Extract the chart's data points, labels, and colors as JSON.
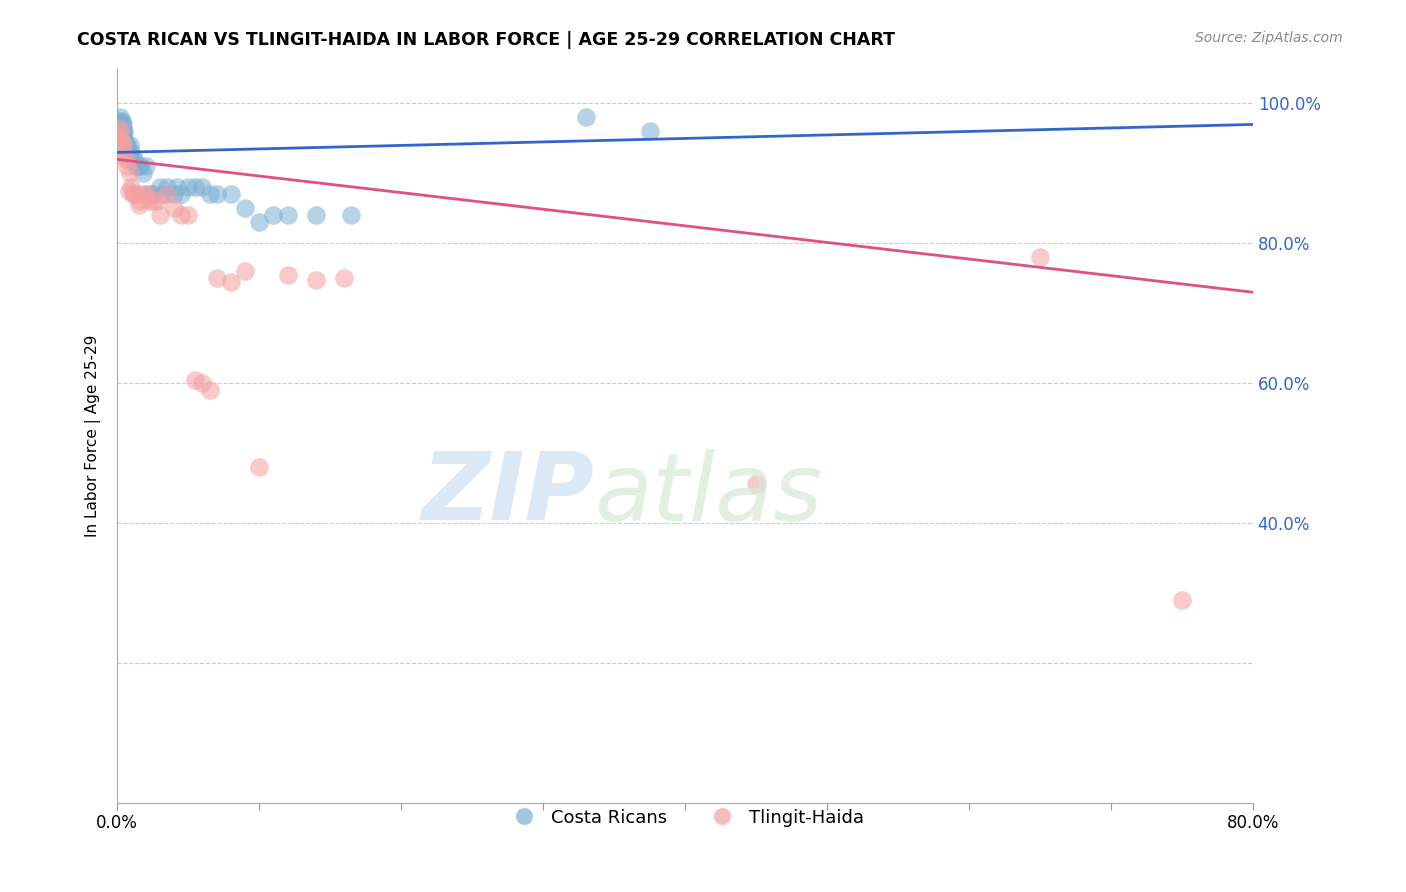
{
  "title": "COSTA RICAN VS TLINGIT-HAIDA IN LABOR FORCE | AGE 25-29 CORRELATION CHART",
  "source": "Source: ZipAtlas.com",
  "ylabel": "In Labor Force | Age 25-29",
  "xlim": [
    0.0,
    0.8
  ],
  "ylim": [
    0.0,
    1.05
  ],
  "x_ticks": [
    0.0,
    0.1,
    0.2,
    0.3,
    0.4,
    0.5,
    0.6,
    0.7,
    0.8
  ],
  "y_ticks_right": [
    0.2,
    0.4,
    0.6,
    0.8,
    1.0
  ],
  "y_tick_labels_right": [
    "",
    "40.0%",
    "60.0%",
    "80.0%",
    "100.0%"
  ],
  "blue_color": "#7bafd4",
  "pink_color": "#f4a0a0",
  "blue_line_color": "#3366cc",
  "pink_line_color": "#e05080",
  "blue_x": [
    0.001,
    0.001,
    0.001,
    0.001,
    0.001,
    0.002,
    0.002,
    0.002,
    0.002,
    0.003,
    0.003,
    0.003,
    0.003,
    0.003,
    0.004,
    0.004,
    0.004,
    0.005,
    0.005,
    0.006,
    0.006,
    0.007,
    0.008,
    0.009,
    0.01,
    0.011,
    0.012,
    0.013,
    0.015,
    0.016,
    0.018,
    0.02,
    0.022,
    0.025,
    0.03,
    0.032,
    0.035,
    0.04,
    0.042,
    0.045,
    0.05,
    0.055,
    0.06,
    0.065,
    0.07,
    0.08,
    0.09,
    0.1,
    0.11,
    0.12,
    0.14,
    0.165,
    0.33,
    0.375
  ],
  "blue_y": [
    0.975,
    0.97,
    0.96,
    0.95,
    0.94,
    0.98,
    0.97,
    0.96,
    0.95,
    0.975,
    0.97,
    0.965,
    0.96,
    0.95,
    0.97,
    0.96,
    0.955,
    0.96,
    0.95,
    0.94,
    0.935,
    0.94,
    0.93,
    0.94,
    0.93,
    0.92,
    0.92,
    0.91,
    0.91,
    0.91,
    0.9,
    0.91,
    0.87,
    0.87,
    0.88,
    0.87,
    0.88,
    0.87,
    0.88,
    0.87,
    0.88,
    0.88,
    0.88,
    0.87,
    0.87,
    0.87,
    0.85,
    0.83,
    0.84,
    0.84,
    0.84,
    0.84,
    0.98,
    0.96
  ],
  "pink_x": [
    0.001,
    0.001,
    0.002,
    0.002,
    0.003,
    0.003,
    0.004,
    0.005,
    0.006,
    0.007,
    0.008,
    0.009,
    0.01,
    0.011,
    0.012,
    0.013,
    0.015,
    0.016,
    0.018,
    0.02,
    0.022,
    0.025,
    0.028,
    0.03,
    0.035,
    0.04,
    0.045,
    0.05,
    0.055,
    0.06,
    0.065,
    0.07,
    0.08,
    0.09,
    0.1,
    0.12,
    0.14,
    0.16,
    0.45,
    0.65,
    0.75
  ],
  "pink_y": [
    0.965,
    0.95,
    0.96,
    0.95,
    0.945,
    0.935,
    0.94,
    0.925,
    0.92,
    0.91,
    0.875,
    0.9,
    0.88,
    0.87,
    0.87,
    0.87,
    0.855,
    0.86,
    0.87,
    0.87,
    0.86,
    0.86,
    0.86,
    0.84,
    0.87,
    0.85,
    0.84,
    0.84,
    0.605,
    0.6,
    0.59,
    0.75,
    0.745,
    0.76,
    0.48,
    0.755,
    0.748,
    0.75,
    0.455,
    0.78,
    0.29
  ]
}
